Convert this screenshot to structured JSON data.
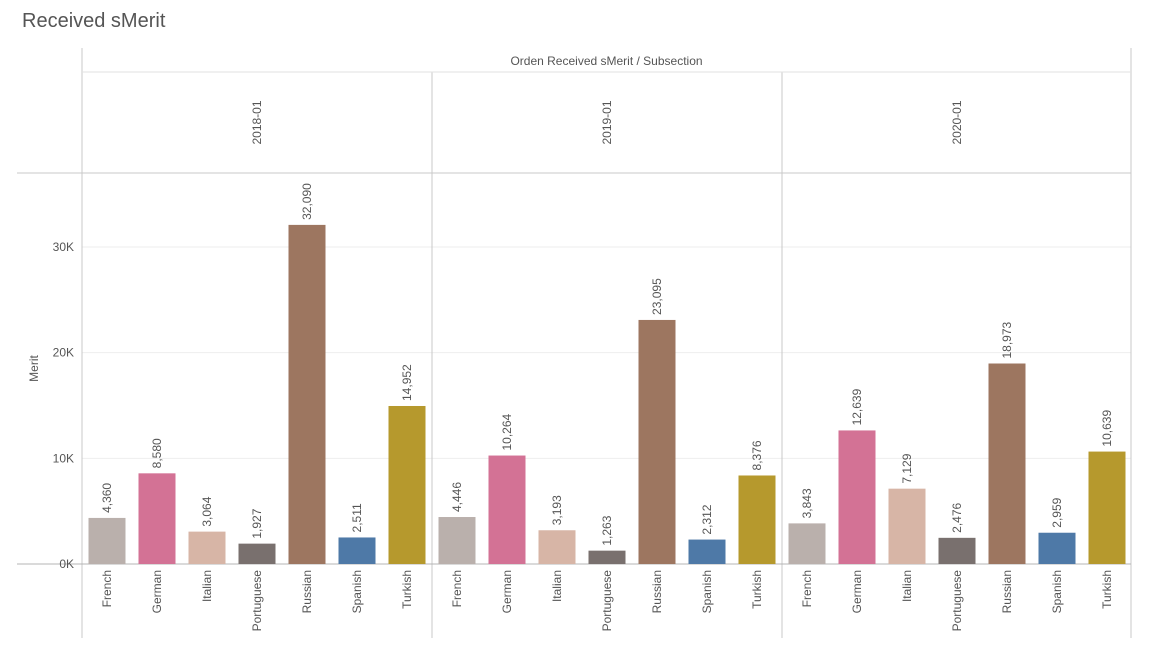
{
  "page": {
    "title": "Received sMerit"
  },
  "chart_data": {
    "type": "bar",
    "column_header": "Orden Received sMerit / Subsection",
    "ylabel": "Merit",
    "ylim": [
      0,
      37000
    ],
    "yticks": [
      0,
      10000,
      20000,
      30000
    ],
    "ytick_labels": [
      "0K",
      "10K",
      "20K",
      "30K"
    ],
    "grid": true,
    "categories": [
      "French",
      "German",
      "Italian",
      "Portuguese",
      "Russian",
      "Spanish",
      "Turkish"
    ],
    "colors": [
      "#bab0ac",
      "#d37295",
      "#d7b5a6",
      "#79706e",
      "#9d7660",
      "#4e79a7",
      "#b6992d"
    ],
    "panels": [
      {
        "name": "2018-01",
        "values": [
          4360,
          8580,
          3064,
          1927,
          32090,
          2511,
          14952
        ],
        "labels": [
          "4,360",
          "8,580",
          "3,064",
          "1,927",
          "32,090",
          "2,511",
          "14,952"
        ]
      },
      {
        "name": "2019-01",
        "values": [
          4446,
          10264,
          3193,
          1263,
          23095,
          2312,
          8376
        ],
        "labels": [
          "4,446",
          "10,264",
          "3,193",
          "1,263",
          "23,095",
          "2,312",
          "8,376"
        ]
      },
      {
        "name": "2020-01",
        "values": [
          3843,
          12639,
          7129,
          2476,
          18973,
          2959,
          10639
        ],
        "labels": [
          "3,843",
          "12,639",
          "7,129",
          "2,476",
          "18,973",
          "2,959",
          "10,639"
        ]
      }
    ]
  }
}
